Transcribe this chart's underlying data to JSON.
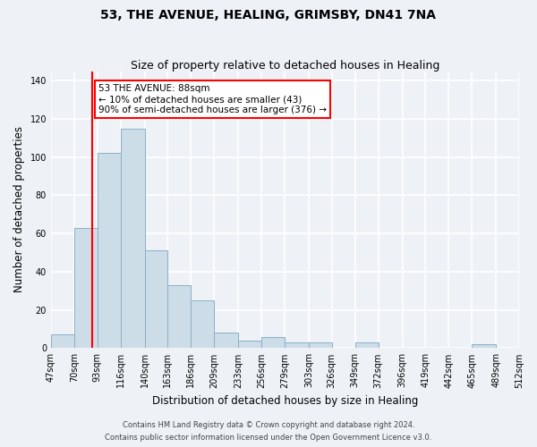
{
  "title1": "53, THE AVENUE, HEALING, GRIMSBY, DN41 7NA",
  "title2": "Size of property relative to detached houses in Healing",
  "xlabel": "Distribution of detached houses by size in Healing",
  "ylabel": "Number of detached properties",
  "bar_edges": [
    47,
    70,
    93,
    116,
    140,
    163,
    186,
    209,
    233,
    256,
    279,
    303,
    326,
    349,
    372,
    396,
    419,
    442,
    465,
    489,
    512
  ],
  "bar_heights": [
    7,
    63,
    102,
    115,
    51,
    33,
    25,
    8,
    4,
    6,
    3,
    3,
    0,
    3,
    0,
    0,
    0,
    0,
    2,
    0
  ],
  "bar_color": "#ccdde8",
  "bar_edge_color": "#8aafc8",
  "red_line_x": 88,
  "ylim": [
    0,
    145
  ],
  "yticks": [
    0,
    20,
    40,
    60,
    80,
    100,
    120,
    140
  ],
  "annotation_title": "53 THE AVENUE: 88sqm",
  "annotation_line1": "← 10% of detached houses are smaller (43)",
  "annotation_line2": "90% of semi-detached houses are larger (376) →",
  "footnote1": "Contains HM Land Registry data © Crown copyright and database right 2024.",
  "footnote2": "Contains public sector information licensed under the Open Government Licence v3.0.",
  "background_color": "#eef2f7",
  "grid_color": "#ffffff",
  "title1_fontsize": 10,
  "title2_fontsize": 9,
  "xlabel_fontsize": 8.5,
  "ylabel_fontsize": 8.5,
  "tick_fontsize": 7,
  "annot_fontsize": 7.5,
  "footnote_fontsize": 6
}
